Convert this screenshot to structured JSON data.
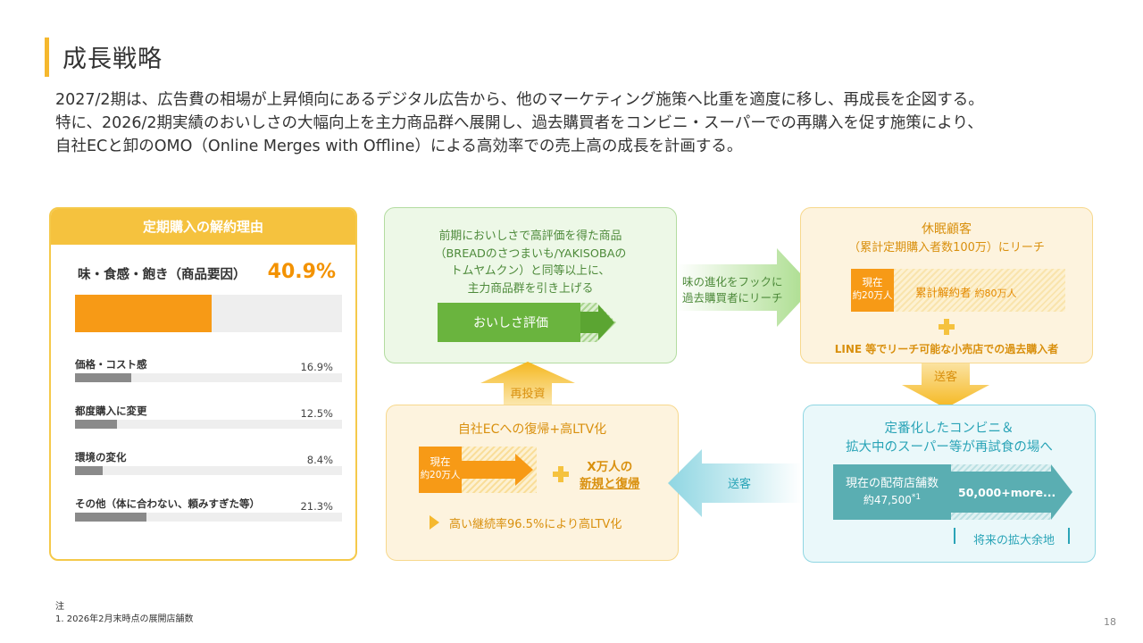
{
  "page": {
    "title": "成長戦略",
    "intro_lines": [
      "2027/2期は、広告費の相場が上昇傾向にあるデジタル広告から、他のマーケティング施策へ比重を適度に移し、再成長を企図する。",
      "特に、2026/2期実績のおいしさの大幅向上を主力商品群へ展開し、過去購買者をコンビニ・スーパーでの再購入を促す施策により、",
      "自社ECと卸のOMO（Online Merges with Offline）による高効率での売上高の成長を計画する。"
    ],
    "footnote_head": "注",
    "footnote": "1. 2026年2月末時点の展開店舗数",
    "page_number": "18"
  },
  "reasons": {
    "title": "定期購入の解約理由",
    "main": {
      "label": "味・食感・飽き（商品要因）",
      "pct_text": "40.9%",
      "value": 40.9
    },
    "items": [
      {
        "label": "価格・コスト感",
        "pct_text": "16.9%",
        "value": 16.9
      },
      {
        "label": "都度購入に変更",
        "pct_text": "12.5%",
        "value": 12.5
      },
      {
        "label": "環境の変化",
        "pct_text": "8.4%",
        "value": 8.4
      },
      {
        "label": "その他（体に合わない、頼みすぎた等）",
        "pct_text": "21.3%",
        "value": 21.3
      }
    ],
    "scale_max": 80
  },
  "green_box": {
    "lines": [
      "前期においしさで高評価を得た商品",
      "（BREADのさつまいも/YAKISOBAの",
      "トムヤムクン）と同等以上に、",
      "主力商品群を引き上げる"
    ],
    "arrow_label": "おいしさ評価",
    "color": "#6ab43e"
  },
  "arrow_right": {
    "lines": [
      "味の進化をフックに",
      "過去購買者にリーチ"
    ]
  },
  "dormant_box": {
    "title": "休眠顧客",
    "subtitle": "（累計定期購入者数100万）にリーチ",
    "current_label": "現在",
    "current_value": "約20万人",
    "cumulative_label": "累計解約者",
    "cumulative_value": "約80万人",
    "line_text": "LINE 等でリーチ可能な小売店での過去購入者"
  },
  "arrow_down": {
    "label": "送客"
  },
  "arrow_up": {
    "label": "再投資"
  },
  "arrow_left": {
    "label": "送客"
  },
  "ec_box": {
    "title": "自社ECへの復帰+高LTV化",
    "current_label": "現在",
    "current_value": "約20万人",
    "target_line1": "X万人の",
    "target_line2": "新規と復帰",
    "ltv_text": "高い継続率96.5%により高LTV化"
  },
  "store_box": {
    "title_line1": "定番化したコンビニ＆",
    "title_line2": "拡大中のスーパー等が再試食の場へ",
    "current_label": "現在の配荷店舗数",
    "current_value": "約47,500",
    "footnote_mark": "*1",
    "future_value": "50,000+more...",
    "future_label": "将来の拡大余地"
  }
}
